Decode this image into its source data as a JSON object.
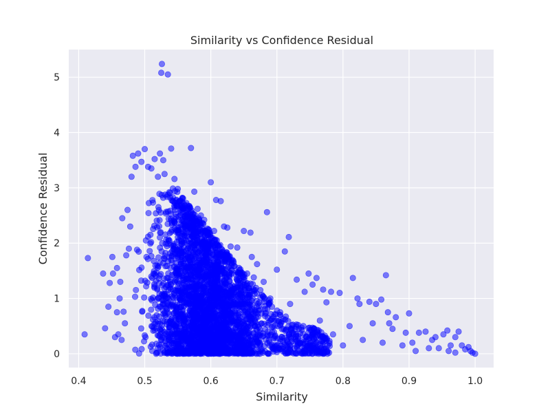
{
  "chart_data": {
    "type": "scatter",
    "title": "Similarity vs Confidence Residual",
    "xlabel": "Similarity",
    "ylabel": "Confidence Residual",
    "xlim": [
      0.385,
      1.028
    ],
    "ylim": [
      -0.25,
      5.5
    ],
    "xticks": [
      0.4,
      0.5,
      0.6,
      0.7,
      0.8,
      0.9,
      1.0
    ],
    "xtick_labels": [
      "0.4",
      "0.5",
      "0.6",
      "0.7",
      "0.8",
      "0.9",
      "1.0"
    ],
    "yticks": [
      0,
      1,
      2,
      3,
      4,
      5
    ],
    "ytick_labels": [
      "0",
      "1",
      "2",
      "3",
      "4",
      "5"
    ],
    "grid": true,
    "background": "#eaeaf2",
    "point_color": "#0000ff",
    "point_opacity": 0.5,
    "points": [
      [
        0.409,
        0.35
      ],
      [
        0.414,
        1.73
      ],
      [
        0.437,
        1.45
      ],
      [
        0.44,
        0.46
      ],
      [
        0.445,
        0.85
      ],
      [
        0.447,
        1.28
      ],
      [
        0.451,
        1.75
      ],
      [
        0.452,
        1.45
      ],
      [
        0.455,
        0.3
      ],
      [
        0.458,
        0.75
      ],
      [
        0.458,
        1.55
      ],
      [
        0.46,
        0.35
      ],
      [
        0.462,
        1.0
      ],
      [
        0.463,
        1.3
      ],
      [
        0.465,
        0.25
      ],
      [
        0.466,
        2.45
      ],
      [
        0.468,
        0.76
      ],
      [
        0.47,
        0.55
      ],
      [
        0.472,
        1.78
      ],
      [
        0.474,
        2.6
      ],
      [
        0.476,
        1.9
      ],
      [
        0.478,
        2.3
      ],
      [
        0.48,
        3.2
      ],
      [
        0.482,
        3.58
      ],
      [
        0.486,
        3.38
      ],
      [
        0.49,
        3.62
      ],
      [
        0.495,
        3.47
      ],
      [
        0.5,
        3.7
      ],
      [
        0.505,
        3.38
      ],
      [
        0.51,
        3.35
      ],
      [
        0.515,
        3.52
      ],
      [
        0.52,
        3.2
      ],
      [
        0.523,
        3.62
      ],
      [
        0.525,
        5.08
      ],
      [
        0.526,
        5.24
      ],
      [
        0.528,
        3.5
      ],
      [
        0.53,
        3.25
      ],
      [
        0.535,
        5.05
      ],
      [
        0.54,
        3.71
      ],
      [
        0.545,
        3.16
      ],
      [
        0.55,
        2.98
      ],
      [
        0.555,
        2.7
      ],
      [
        0.57,
        3.72
      ],
      [
        0.575,
        2.93
      ],
      [
        0.58,
        2.62
      ],
      [
        0.585,
        2.5
      ],
      [
        0.59,
        2.42
      ],
      [
        0.6,
        3.1
      ],
      [
        0.605,
        2.22
      ],
      [
        0.608,
        2.78
      ],
      [
        0.615,
        2.76
      ],
      [
        0.62,
        2.3
      ],
      [
        0.625,
        2.28
      ],
      [
        0.63,
        1.94
      ],
      [
        0.64,
        1.92
      ],
      [
        0.65,
        2.22
      ],
      [
        0.66,
        2.19
      ],
      [
        0.662,
        1.75
      ],
      [
        0.67,
        1.62
      ],
      [
        0.685,
        2.56
      ],
      [
        0.7,
        1.52
      ],
      [
        0.712,
        1.85
      ],
      [
        0.718,
        2.11
      ],
      [
        0.73,
        1.34
      ],
      [
        0.742,
        1.12
      ],
      [
        0.748,
        1.45
      ],
      [
        0.754,
        1.25
      ],
      [
        0.76,
        1.37
      ],
      [
        0.77,
        1.16
      ],
      [
        0.775,
        0.93
      ],
      [
        0.782,
        1.12
      ],
      [
        0.795,
        1.1
      ],
      [
        0.815,
        1.37
      ],
      [
        0.822,
        1.0
      ],
      [
        0.825,
        0.9
      ],
      [
        0.84,
        0.94
      ],
      [
        0.85,
        0.9
      ],
      [
        0.858,
        0.98
      ],
      [
        0.865,
        1.42
      ],
      [
        0.868,
        0.75
      ],
      [
        0.87,
        0.55
      ],
      [
        0.875,
        0.45
      ],
      [
        0.88,
        0.66
      ],
      [
        0.895,
        0.38
      ],
      [
        0.9,
        0.73
      ],
      [
        0.905,
        0.2
      ],
      [
        0.915,
        0.38
      ],
      [
        0.925,
        0.4
      ],
      [
        0.935,
        0.25
      ],
      [
        0.94,
        0.3
      ],
      [
        0.945,
        0.1
      ],
      [
        0.952,
        0.35
      ],
      [
        0.958,
        0.42
      ],
      [
        0.963,
        0.15
      ],
      [
        0.97,
        0.3
      ],
      [
        0.975,
        0.4
      ],
      [
        0.98,
        0.15
      ],
      [
        0.985,
        0.08
      ],
      [
        0.99,
        0.12
      ],
      [
        0.993,
        0.05
      ],
      [
        0.996,
        0.02
      ],
      [
        1.0,
        0.0
      ],
      [
        0.76,
        0.2
      ],
      [
        0.785,
        0.35
      ],
      [
        0.8,
        0.15
      ],
      [
        0.81,
        0.5
      ],
      [
        0.83,
        0.25
      ],
      [
        0.845,
        0.55
      ],
      [
        0.86,
        0.2
      ],
      [
        0.89,
        0.15
      ],
      [
        0.91,
        0.05
      ],
      [
        0.93,
        0.1
      ],
      [
        0.96,
        0.05
      ],
      [
        0.97,
        0.02
      ],
      [
        0.74,
        0.5
      ],
      [
        0.745,
        0.3
      ],
      [
        0.75,
        0.1
      ],
      [
        0.765,
        0.6
      ],
      [
        0.72,
        0.9
      ],
      [
        0.71,
        0.45
      ],
      [
        0.705,
        0.75
      ],
      [
        0.69,
        1.0
      ],
      [
        0.68,
        1.3
      ],
      [
        0.675,
        1.15
      ],
      [
        0.665,
        1.38
      ],
      [
        0.655,
        1.45
      ]
    ],
    "cloud_points": 3200
  }
}
